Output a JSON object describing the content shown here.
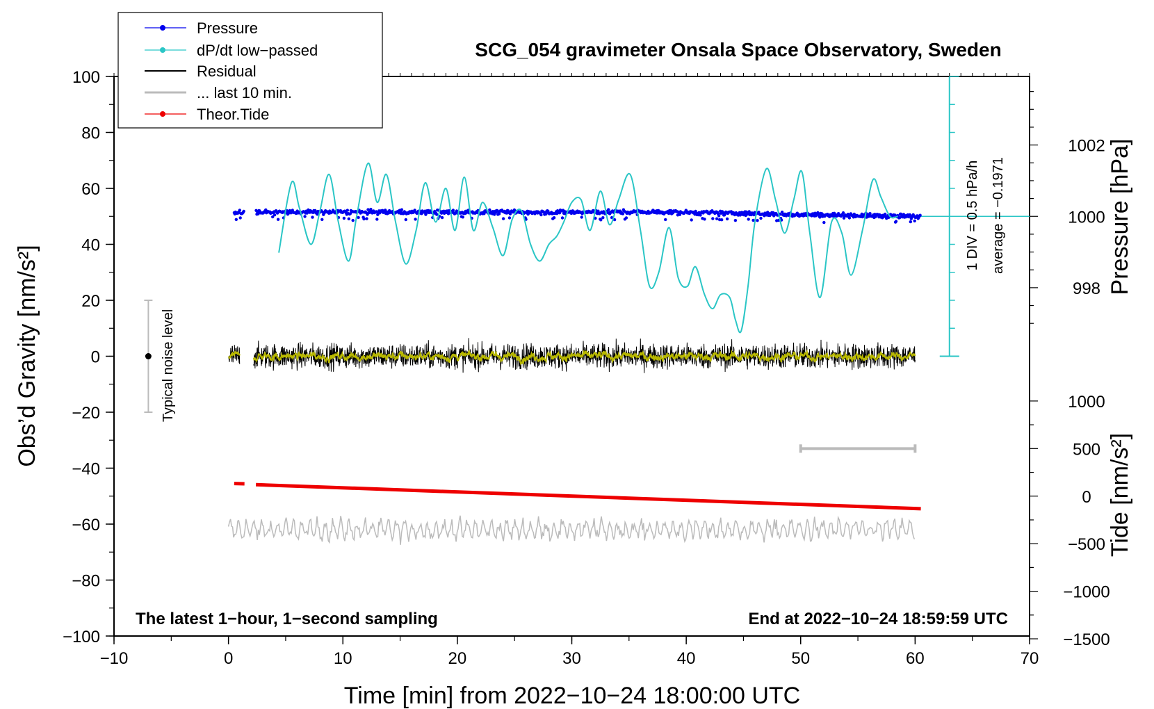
{
  "chart_data": {
    "type": "line",
    "title": "SCG_054 gravimeter Onsala Space Observatory, Sweden",
    "xlabel": "Time [min] from 2022−10−24 18:00:00 UTC",
    "ylabel": "Obs’d Gravity [nm/s²]",
    "xlim": [
      -10,
      70
    ],
    "ylim": [
      -100,
      100
    ],
    "xticks": [
      "−10",
      "0",
      "10",
      "20",
      "30",
      "40",
      "50",
      "60",
      "70"
    ],
    "yticks": [
      "100",
      "80",
      "60",
      "40",
      "20",
      "0",
      "−20",
      "−40",
      "−60",
      "−80",
      "−100"
    ],
    "right_axes": {
      "pressure": {
        "label": "Pressure [hPa]",
        "ticks": [
          "1002",
          "1000",
          "998"
        ],
        "tick_values": [
          1002,
          1000,
          998
        ]
      },
      "tide": {
        "label": "Tide [nm/s²]",
        "ticks": [
          "1000",
          "500",
          "0",
          "−500",
          "−1000",
          "−1500"
        ],
        "tick_values": [
          1000,
          500,
          0,
          -500,
          -1000,
          -1500
        ]
      }
    },
    "legend": [
      {
        "label": "Pressure",
        "color": "#0000ee",
        "marker": true
      },
      {
        "label": "dP/dt low−passed",
        "color": "#2bc6c6",
        "marker": true
      },
      {
        "label": "Residual",
        "color": "#000000",
        "marker": false
      },
      {
        "label": "... last 10 min.",
        "color": "#bbbbbb",
        "marker": false
      },
      {
        "label": "Theor.Tide",
        "color": "#ee0000",
        "marker": true
      }
    ],
    "series": [
      {
        "name": "dP/dt low-passed",
        "color": "#2bc6c6",
        "x": [
          4.4,
          5.5,
          6.2,
          7.2,
          8.0,
          8.8,
          9.6,
          10.5,
          11.2,
          12.2,
          13.0,
          13.8,
          14.6,
          15.5,
          16.4,
          17.2,
          18.1,
          19.0,
          19.8,
          20.6,
          21.4,
          22.2,
          23.1,
          24.0,
          24.8,
          25.6,
          26.4,
          27.2,
          28.0,
          28.7,
          29.3,
          30.0,
          30.8,
          31.6,
          32.5,
          33.3,
          34.1,
          35.1,
          36.0,
          36.8,
          37.6,
          38.5,
          39.3,
          40.1,
          40.8,
          41.6,
          42.3,
          43.0,
          43.8,
          44.3,
          44.8,
          45.4,
          46.0,
          47.0,
          47.8,
          48.6,
          49.4,
          50.1,
          50.8,
          51.7,
          52.7,
          53.6,
          54.4,
          55.4,
          56.3,
          57.0,
          57.8,
          58.5
        ],
        "y": [
          37,
          62,
          53,
          40,
          52,
          65,
          48,
          34,
          50,
          69,
          55,
          65,
          48,
          33,
          45,
          62,
          48,
          60,
          45,
          64,
          45,
          55,
          46,
          36,
          49,
          52,
          40,
          34,
          40,
          43,
          48,
          55,
          56,
          45,
          59,
          47,
          56,
          65,
          45,
          25,
          30,
          46,
          28,
          25,
          32,
          22,
          17,
          22,
          21,
          13,
          9,
          25,
          48,
          67,
          56,
          44,
          56,
          66,
          44,
          21,
          48,
          44,
          29,
          45,
          63,
          57,
          50,
          50
        ]
      },
      {
        "name": "Pressure",
        "color": "#0000ee",
        "y_level": 50.5,
        "x_range": [
          0.5,
          60.5
        ]
      },
      {
        "name": "Residual",
        "color": "#000000",
        "y_level": 0,
        "x_range": [
          0,
          60
        ]
      },
      {
        "name": "... last 10 min.",
        "color": "#bbbbbb",
        "y_level": -62,
        "x_range": [
          0,
          60
        ]
      },
      {
        "name": "Theor.Tide",
        "color": "#ee0000",
        "x": [
          0.5,
          60.5
        ],
        "y": [
          -45.5,
          -54.5
        ]
      }
    ],
    "annotations": {
      "noise_label": "Typical noise level",
      "noise_range": [
        -20,
        20
      ],
      "div_label": "1 DIV = 0.5 hPa/h",
      "average_label": "average = −0.1971",
      "bottom_left": "The latest 1−hour, 1−second sampling",
      "bottom_right": "End at 2022−10−24 18:59:59 UTC"
    }
  }
}
